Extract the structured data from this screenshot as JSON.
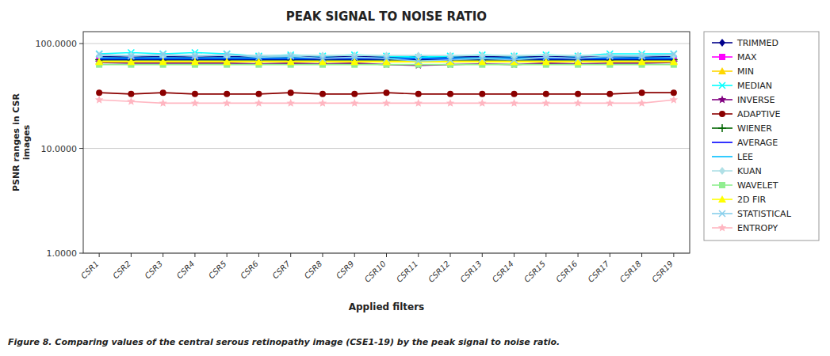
{
  "chart_data": {
    "type": "line",
    "title": "PEAK SIGNAL TO NOISE RATIO",
    "x_label": "Applied filters",
    "y_label": "PSNR ranges in CSR\nimages",
    "caption": "Figure 8. Comparing values of the central serous retinopathy image (CSE1-19) by the peak signal to noise ratio.",
    "categories": [
      "CSR1",
      "CSR2",
      "CSR3",
      "CSR4",
      "CSR5",
      "CSR6",
      "CSR7",
      "CSR8",
      "CSR9",
      "CSR10",
      "CSR11",
      "CSR12",
      "CSR13",
      "CSR14",
      "CSR15",
      "CSR16",
      "CSR17",
      "CSR18",
      "CSR19"
    ],
    "log": "y",
    "ylim": [
      1.0,
      130.0
    ],
    "yticks": [
      {
        "value": 1.0,
        "label": "1.0000"
      },
      {
        "value": 10.0,
        "label": "10.0000"
      },
      {
        "value": 100.0,
        "label": "100.0000"
      }
    ],
    "grid": true,
    "legend": "right",
    "series": [
      {
        "name": "TRIMMED",
        "color": "#00008B",
        "marker": "diamond",
        "values": [
          75,
          74,
          75,
          74,
          75,
          74,
          75,
          74,
          75,
          74,
          75,
          74,
          75,
          74,
          75,
          74,
          75,
          74,
          75
        ]
      },
      {
        "name": "MAX",
        "color": "#FF00FF",
        "marker": "square",
        "values": [
          72,
          72,
          72,
          72,
          72,
          72,
          72,
          72,
          72,
          72,
          72,
          72,
          72,
          72,
          72,
          72,
          72,
          72,
          72
        ]
      },
      {
        "name": "MIN",
        "color": "#FFD700",
        "marker": "triangle",
        "values": [
          68,
          68,
          68,
          68,
          68,
          68,
          68,
          68,
          68,
          68,
          68,
          68,
          68,
          68,
          68,
          68,
          68,
          68,
          68
        ]
      },
      {
        "name": "MEDIAN",
        "color": "#00FFFF",
        "marker": "x",
        "values": [
          80,
          82,
          80,
          82,
          80,
          76,
          78,
          76,
          78,
          76,
          74,
          76,
          78,
          76,
          78,
          76,
          80,
          80,
          80
        ]
      },
      {
        "name": "INVERSE",
        "color": "#800080",
        "marker": "star",
        "values": [
          66,
          65,
          65,
          65,
          65,
          64,
          65,
          64,
          65,
          63,
          62,
          63,
          64,
          63,
          65,
          64,
          65,
          65,
          66
        ]
      },
      {
        "name": "ADAPTIVE",
        "color": "#8B0000",
        "marker": "circle",
        "values": [
          34,
          33,
          34,
          33,
          33,
          33,
          34,
          33,
          33,
          34,
          33,
          33,
          33,
          33,
          33,
          33,
          33,
          34,
          34
        ]
      },
      {
        "name": "WIENER",
        "color": "#006400",
        "marker": "plus",
        "values": [
          70,
          70,
          70,
          70,
          70,
          70,
          70,
          70,
          70,
          70,
          70,
          70,
          70,
          70,
          70,
          70,
          70,
          70,
          70
        ]
      },
      {
        "name": "AVERAGE",
        "color": "#0000FF",
        "values": [
          71,
          71,
          71,
          71,
          71,
          71,
          71,
          71,
          71,
          71,
          71,
          71,
          71,
          71,
          71,
          71,
          71,
          71,
          71
        ]
      },
      {
        "name": "LEE",
        "color": "#00BFFF",
        "values": [
          73,
          73,
          73,
          73,
          73,
          73,
          73,
          73,
          73,
          73,
          73,
          73,
          73,
          73,
          73,
          73,
          73,
          73,
          73
        ]
      },
      {
        "name": "KUAN",
        "color": "#B0E0E6",
        "marker": "diamond",
        "values": [
          77,
          77,
          77,
          77,
          77,
          77,
          77,
          77,
          77,
          77,
          77,
          77,
          77,
          77,
          77,
          77,
          77,
          77,
          77
        ]
      },
      {
        "name": "WAVELET",
        "color": "#90EE90",
        "marker": "square",
        "values": [
          63,
          63,
          63,
          63,
          63,
          63,
          63,
          63,
          63,
          63,
          63,
          63,
          63,
          63,
          63,
          63,
          63,
          63,
          63
        ]
      },
      {
        "name": "2D FIR",
        "color": "#FFFF00",
        "marker": "triangle",
        "values": [
          67,
          67,
          67,
          67,
          67,
          67,
          67,
          67,
          67,
          67,
          67,
          67,
          67,
          67,
          67,
          67,
          67,
          67,
          67
        ]
      },
      {
        "name": "STATISTICAL",
        "color": "#87CEEB",
        "marker": "x",
        "values": [
          79,
          76,
          79,
          76,
          79,
          74,
          76,
          72,
          74,
          72,
          68,
          70,
          72,
          70,
          74,
          72,
          76,
          76,
          79
        ]
      },
      {
        "name": "ENTROPY",
        "color": "#FFB6C1",
        "marker": "star",
        "values": [
          29,
          28,
          27,
          27,
          27,
          27,
          27,
          27,
          27,
          27,
          27,
          27,
          27,
          27,
          27,
          27,
          27,
          27,
          29
        ]
      }
    ]
  }
}
